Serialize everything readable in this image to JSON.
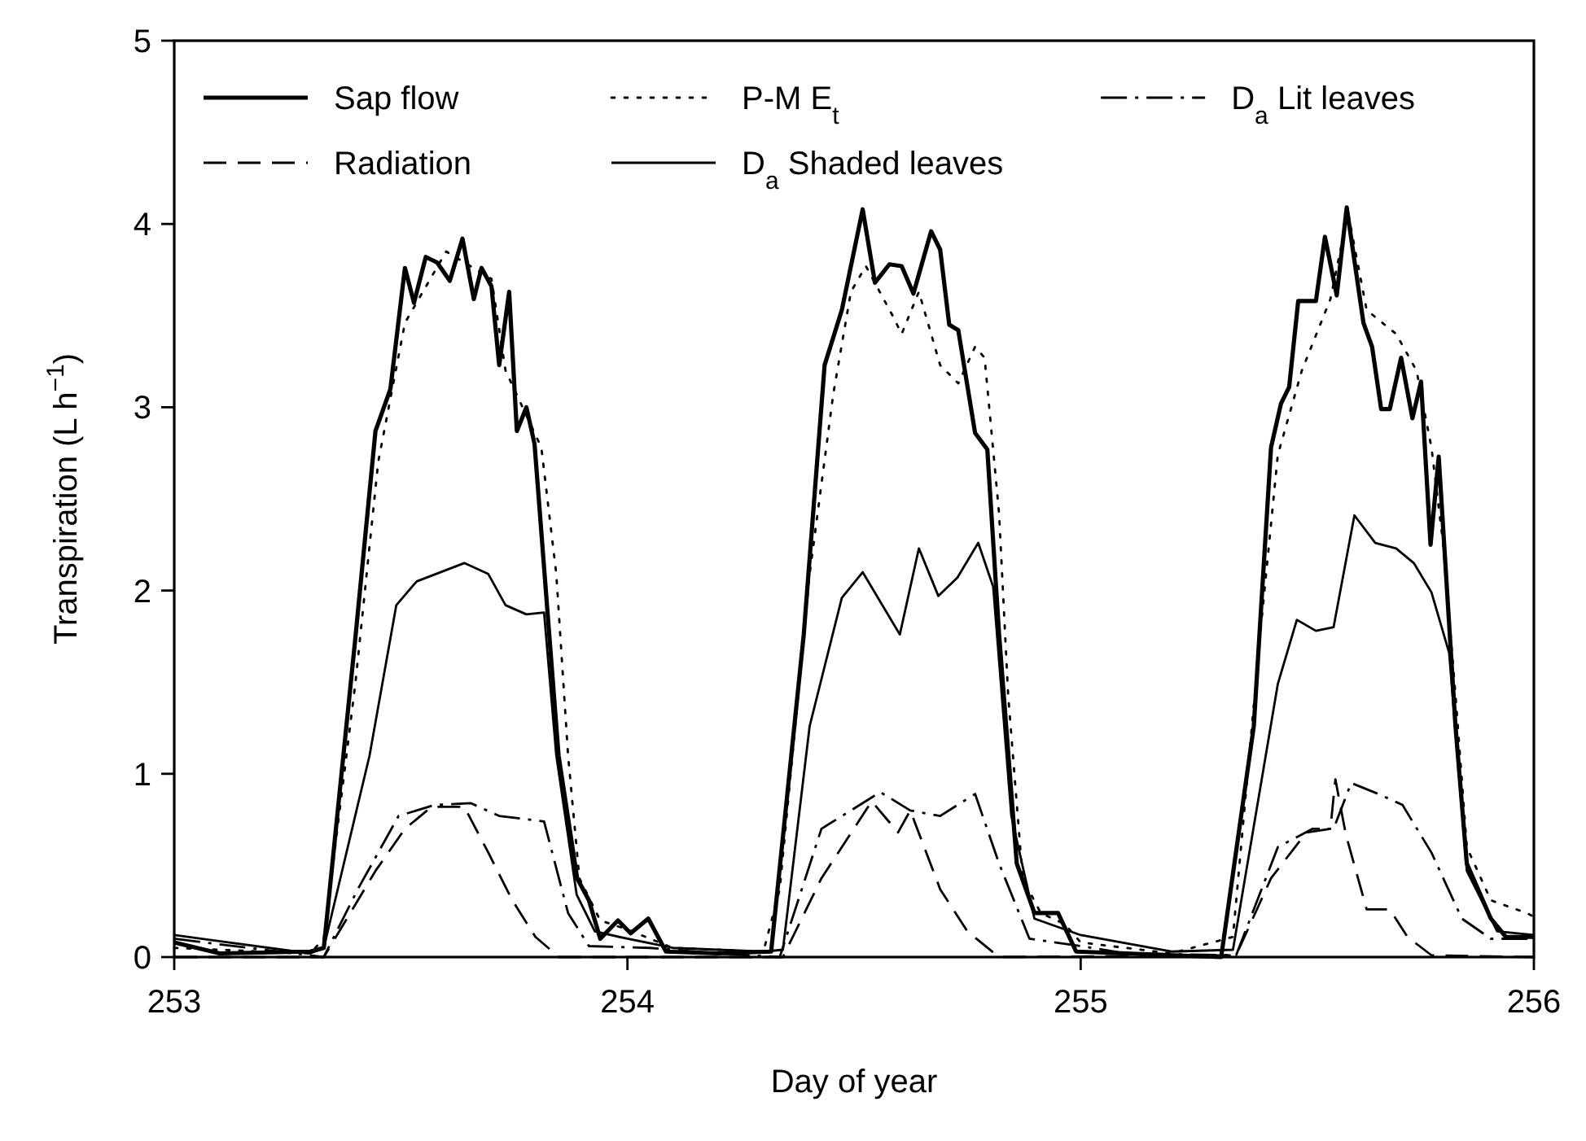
{
  "chart_data": {
    "type": "line",
    "xlabel": "Day of year",
    "ylabel": "Transpiration (L h$^{−1}$)",
    "xlim": [
      253,
      256
    ],
    "xticks": [
      253,
      254,
      255,
      256
    ],
    "ylim": [
      0,
      5
    ],
    "yticks": [
      0,
      1,
      2,
      3,
      4,
      5
    ],
    "legend": "top",
    "grid": false,
    "marker": "none",
    "series": [
      {
        "name": "Sap flow",
        "color": "#000000",
        "line_style": "solid",
        "x": [
          253.0,
          253.1,
          253.3,
          253.33,
          253.4,
          253.444,
          253.477,
          253.509,
          253.529,
          253.555,
          253.58,
          253.608,
          253.636,
          253.661,
          253.678,
          253.7,
          253.717,
          253.739,
          253.756,
          253.777,
          253.795,
          253.848,
          253.889,
          253.915,
          253.94,
          253.979,
          254.007,
          254.046,
          254.085,
          254.2,
          254.317,
          254.389,
          254.435,
          254.473,
          254.519,
          254.546,
          254.578,
          254.605,
          254.631,
          254.67,
          254.69,
          254.71,
          254.73,
          254.767,
          254.794,
          254.82,
          254.859,
          254.898,
          254.95,
          254.99,
          255.1,
          255.31,
          255.382,
          255.42,
          255.442,
          255.46,
          255.48,
          255.519,
          255.539,
          255.565,
          255.587,
          255.624,
          255.643,
          255.663,
          255.682,
          255.707,
          255.732,
          255.751,
          255.772,
          255.79,
          255.827,
          255.852,
          255.905,
          255.938,
          256.0
        ],
        "values": [
          0.08,
          0.02,
          0.03,
          0.05,
          1.75,
          2.87,
          3.1,
          3.76,
          3.57,
          3.82,
          3.79,
          3.69,
          3.92,
          3.59,
          3.76,
          3.66,
          3.23,
          3.63,
          2.87,
          3.0,
          2.8,
          1.1,
          0.43,
          0.31,
          0.1,
          0.2,
          0.13,
          0.21,
          0.03,
          0.02,
          0.03,
          1.76,
          3.23,
          3.53,
          4.08,
          3.68,
          3.78,
          3.77,
          3.62,
          3.96,
          3.86,
          3.45,
          3.42,
          2.86,
          2.77,
          1.76,
          0.51,
          0.24,
          0.24,
          0.03,
          0.02,
          0.0,
          1.26,
          2.78,
          3.02,
          3.11,
          3.58,
          3.58,
          3.93,
          3.61,
          4.09,
          3.46,
          3.33,
          2.99,
          2.99,
          3.27,
          2.94,
          3.14,
          2.25,
          2.73,
          1.26,
          0.51,
          0.21,
          0.11,
          0.11
        ]
      },
      {
        "name": "P-M E$_{t}$",
        "color": "#000000",
        "line_style": "dotted",
        "x": [
          253.0,
          253.3,
          253.33,
          253.4,
          253.45,
          253.509,
          253.6,
          253.7,
          253.731,
          253.81,
          253.843,
          253.869,
          253.894,
          253.94,
          254.0,
          254.1,
          254.3,
          254.336,
          254.402,
          254.454,
          254.493,
          254.526,
          254.585,
          254.605,
          254.643,
          254.69,
          254.73,
          254.767,
          254.788,
          254.82,
          254.84,
          254.872,
          254.912,
          254.965,
          255.0,
          255.2,
          255.336,
          255.396,
          255.435,
          255.488,
          255.551,
          255.59,
          255.631,
          255.696,
          255.741,
          255.774,
          255.8,
          255.827,
          255.852,
          255.905,
          255.984,
          256.0
        ],
        "values": [
          0.05,
          0.02,
          0.1,
          1.5,
          2.7,
          3.46,
          3.85,
          3.7,
          3.2,
          2.78,
          2.09,
          1.1,
          0.43,
          0.2,
          0.15,
          0.05,
          0.03,
          0.37,
          2.09,
          3.07,
          3.63,
          3.77,
          3.5,
          3.4,
          3.63,
          3.23,
          3.13,
          3.33,
          3.27,
          2.42,
          1.43,
          0.43,
          0.24,
          0.18,
          0.08,
          0.02,
          0.11,
          1.76,
          2.74,
          3.2,
          3.59,
          4.06,
          3.53,
          3.4,
          3.2,
          2.78,
          2.25,
          1.43,
          0.6,
          0.31,
          0.24,
          0.22
        ]
      },
      {
        "name": "D$_{a}$ Lit leaves",
        "color": "#000000",
        "line_style": "dashdot",
        "x": [
          253.0,
          253.33,
          253.405,
          253.495,
          253.575,
          253.654,
          253.717,
          253.816,
          253.869,
          253.915,
          254.05,
          254.2,
          254.336,
          254.428,
          254.558,
          254.624,
          254.69,
          254.767,
          254.82,
          254.887,
          255.0,
          255.1,
          255.343,
          255.435,
          255.512,
          255.558,
          255.597,
          255.657,
          255.71,
          255.774,
          255.841,
          255.905,
          256.0
        ],
        "values": [
          0.1,
          0.0,
          0.37,
          0.77,
          0.83,
          0.84,
          0.77,
          0.74,
          0.24,
          0.06,
          0.05,
          0.02,
          0.0,
          0.7,
          0.9,
          0.8,
          0.77,
          0.89,
          0.51,
          0.1,
          0.06,
          0.02,
          0.01,
          0.6,
          0.7,
          0.7,
          0.95,
          0.89,
          0.83,
          0.57,
          0.21,
          0.1,
          0.1
        ]
      },
      {
        "name": "Radiation",
        "color": "#000000",
        "line_style": "dashed",
        "x": [
          253.0,
          253.33,
          253.444,
          253.509,
          253.568,
          253.64,
          253.693,
          253.746,
          253.797,
          253.849,
          254.343,
          254.428,
          254.539,
          254.597,
          254.624,
          254.69,
          254.75,
          254.82,
          255.343,
          255.42,
          255.498,
          255.551,
          255.562,
          255.585,
          255.631,
          255.682,
          255.721,
          255.774,
          256.0
        ],
        "values": [
          0.0,
          0.0,
          0.47,
          0.7,
          0.82,
          0.82,
          0.57,
          0.31,
          0.11,
          0.0,
          0.0,
          0.43,
          0.85,
          0.68,
          0.8,
          0.37,
          0.14,
          0.0,
          0.01,
          0.43,
          0.68,
          0.7,
          0.97,
          0.67,
          0.26,
          0.26,
          0.11,
          0.01,
          0.0
        ]
      },
      {
        "name": "D$_{a}$ Shaded leaves",
        "color": "#000000",
        "line_style": "solid",
        "x": [
          253.0,
          253.3,
          253.33,
          253.431,
          253.49,
          253.535,
          253.64,
          253.693,
          253.731,
          253.777,
          253.816,
          253.843,
          253.888,
          253.928,
          254.0,
          254.1,
          254.3,
          254.343,
          254.402,
          254.473,
          254.519,
          254.601,
          254.643,
          254.686,
          254.728,
          254.774,
          254.807,
          254.847,
          254.898,
          255.0,
          255.2,
          255.336,
          255.435,
          255.477,
          255.519,
          255.558,
          255.604,
          255.65,
          255.696,
          255.735,
          255.774,
          255.813,
          255.852,
          255.919,
          256.0
        ],
        "values": [
          0.12,
          0.02,
          0.05,
          1.1,
          1.92,
          2.05,
          2.15,
          2.09,
          1.92,
          1.87,
          1.88,
          1.1,
          0.34,
          0.14,
          0.1,
          0.05,
          0.03,
          0.04,
          1.26,
          1.96,
          2.1,
          1.76,
          2.23,
          1.97,
          2.07,
          2.26,
          2.02,
          0.77,
          0.21,
          0.12,
          0.03,
          0.04,
          1.49,
          1.84,
          1.78,
          1.8,
          2.41,
          2.26,
          2.23,
          2.15,
          1.99,
          1.66,
          0.47,
          0.14,
          0.12
        ]
      }
    ]
  }
}
